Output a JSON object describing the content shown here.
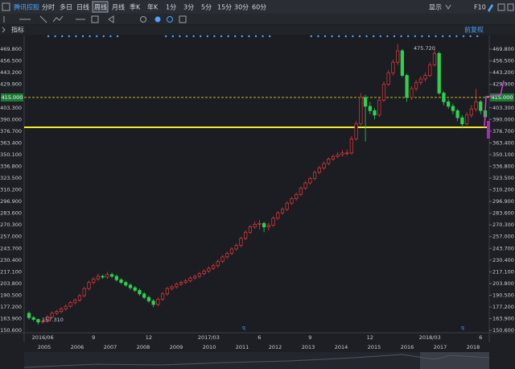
{
  "toolbar": {
    "stock": "腾讯控股",
    "periods": [
      "分时",
      "多日",
      "日线",
      "周线",
      "月线",
      "季K",
      "年K",
      "1分",
      "3分",
      "5分",
      "15分",
      "30分",
      "60分"
    ],
    "selected_index": 3,
    "display": "显示",
    "f10": "F10"
  },
  "indicator_bar": {
    "left": "指标",
    "right": "前复权"
  },
  "chart_data": {
    "type": "candlestick",
    "up_color": "#e8383d",
    "down_color": "#2fd14f",
    "ylim": [
      147.9,
      479.9
    ],
    "yticks": [
      {
        "value": 469.8,
        "label": "469.800"
      },
      {
        "value": 456.5,
        "label": "456.500"
      },
      {
        "value": 443.2,
        "label": "443.200"
      },
      {
        "value": 429.9,
        "label": "429.900"
      },
      {
        "value": 403.3,
        "label": "403.300"
      },
      {
        "value": 390,
        "label": "390.000"
      },
      {
        "value": 376.7,
        "label": "376.700"
      },
      {
        "value": 363.4,
        "label": "363.400"
      },
      {
        "value": 350.1,
        "label": "350.100"
      },
      {
        "value": 336.8,
        "label": "336.800"
      },
      {
        "value": 323.5,
        "label": "323.500"
      },
      {
        "value": 310.2,
        "label": "310.200"
      },
      {
        "value": 296.9,
        "label": "296.900"
      },
      {
        "value": 283.6,
        "label": "283.600"
      },
      {
        "value": 270.3,
        "label": "270.300"
      },
      {
        "value": 257,
        "label": "257.000"
      },
      {
        "value": 243.7,
        "label": "243.700"
      },
      {
        "value": 230.4,
        "label": "230.400"
      },
      {
        "value": 217.1,
        "label": "217.100"
      },
      {
        "value": 203.8,
        "label": "203.800"
      },
      {
        "value": 190.5,
        "label": "190.500"
      },
      {
        "value": 177.2,
        "label": "177.200"
      },
      {
        "value": 163.9,
        "label": "163.900"
      },
      {
        "value": 150.6,
        "label": "150.600"
      }
    ],
    "price_lines": [
      {
        "value": 415,
        "label": "415.000",
        "color": "#d8d020",
        "dashed": true
      },
      {
        "value": 381.1,
        "color": "#f2ea2a",
        "dashed": false
      }
    ],
    "annotations": [
      {
        "label": "475.720"
      },
      {
        "label": "157.310"
      }
    ],
    "categories": [
      null,
      null,
      null,
      "2016/06",
      null,
      null,
      null,
      null,
      null,
      null,
      null,
      null,
      null,
      null,
      "9",
      null,
      null,
      null,
      null,
      null,
      null,
      null,
      null,
      null,
      null,
      null,
      "12",
      null,
      null,
      null,
      null,
      null,
      null,
      null,
      null,
      null,
      null,
      null,
      null,
      "2017/03",
      null,
      null,
      null,
      null,
      null,
      null,
      null,
      null,
      null,
      null,
      "6",
      null,
      null,
      null,
      null,
      null,
      null,
      null,
      null,
      null,
      null,
      "9",
      null,
      null,
      null,
      null,
      null,
      null,
      null,
      null,
      null,
      null,
      null,
      null,
      "12",
      null,
      null,
      null,
      null,
      null,
      null,
      null,
      null,
      null,
      null,
      null,
      null,
      "2018/03",
      null,
      null,
      null,
      null,
      null,
      null,
      null,
      null,
      null,
      null,
      "6",
      null
    ],
    "ohlc": [
      [
        170,
        172,
        163,
        165
      ],
      [
        165,
        167,
        161,
        163
      ],
      [
        163,
        164,
        157.31,
        160
      ],
      [
        160,
        163,
        158,
        161
      ],
      [
        161,
        168,
        159,
        166
      ],
      [
        166,
        172,
        164,
        170
      ],
      [
        170,
        174,
        168,
        172
      ],
      [
        172,
        177,
        170,
        175
      ],
      [
        175,
        180,
        173,
        178
      ],
      [
        178,
        184,
        176,
        182
      ],
      [
        182,
        187,
        180,
        185
      ],
      [
        185,
        192,
        183,
        190
      ],
      [
        190,
        200,
        188,
        198
      ],
      [
        198,
        207,
        196,
        205
      ],
      [
        205,
        211,
        203,
        209
      ],
      [
        209,
        215,
        207,
        212
      ],
      [
        212,
        214,
        209,
        211
      ],
      [
        211,
        217,
        209,
        214
      ],
      [
        214,
        216,
        210,
        212
      ],
      [
        212,
        214,
        206,
        208
      ],
      [
        208,
        210,
        203,
        205
      ],
      [
        205,
        207,
        200,
        202
      ],
      [
        202,
        204,
        197,
        199
      ],
      [
        199,
        201,
        194,
        196
      ],
      [
        196,
        198,
        190,
        192
      ],
      [
        192,
        194,
        186,
        188
      ],
      [
        188,
        190,
        182,
        184
      ],
      [
        184,
        186,
        177,
        180
      ],
      [
        180,
        188,
        178,
        186
      ],
      [
        186,
        194,
        184,
        192
      ],
      [
        192,
        200,
        190,
        198
      ],
      [
        198,
        202,
        196,
        200
      ],
      [
        200,
        205,
        198,
        203
      ],
      [
        203,
        207,
        201,
        205
      ],
      [
        205,
        209,
        203,
        207
      ],
      [
        207,
        212,
        205,
        210
      ],
      [
        210,
        214,
        208,
        212
      ],
      [
        212,
        217,
        210,
        215
      ],
      [
        215,
        220,
        213,
        218
      ],
      [
        218,
        223,
        216,
        221
      ],
      [
        221,
        226,
        219,
        224
      ],
      [
        224,
        231,
        222,
        229
      ],
      [
        229,
        236,
        227,
        234
      ],
      [
        234,
        240,
        232,
        238
      ],
      [
        238,
        245,
        236,
        243
      ],
      [
        243,
        249,
        241,
        247
      ],
      [
        247,
        257,
        245,
        255
      ],
      [
        255,
        264,
        253,
        262
      ],
      [
        262,
        270,
        260,
        268
      ],
      [
        268,
        274,
        266,
        271
      ],
      [
        271,
        276,
        265,
        272
      ],
      [
        272,
        274,
        262,
        268
      ],
      [
        268,
        273,
        264,
        270
      ],
      [
        270,
        280,
        268,
        278
      ],
      [
        278,
        286,
        276,
        284
      ],
      [
        284,
        290,
        282,
        288
      ],
      [
        288,
        297,
        286,
        295
      ],
      [
        295,
        302,
        293,
        300
      ],
      [
        300,
        307,
        298,
        305
      ],
      [
        305,
        314,
        303,
        312
      ],
      [
        312,
        320,
        310,
        318
      ],
      [
        318,
        325,
        316,
        323
      ],
      [
        323,
        332,
        321,
        330
      ],
      [
        330,
        337,
        328,
        335
      ],
      [
        335,
        342,
        333,
        340
      ],
      [
        340,
        347,
        338,
        345
      ],
      [
        345,
        350,
        343,
        348
      ],
      [
        348,
        353,
        346,
        350
      ],
      [
        350,
        355,
        348,
        352
      ],
      [
        352,
        356,
        349,
        352
      ],
      [
        352,
        371,
        350,
        368
      ],
      [
        368,
        388,
        366,
        385
      ],
      [
        385,
        420,
        383,
        415
      ],
      [
        415,
        418,
        365,
        405
      ],
      [
        405,
        410,
        396,
        400
      ],
      [
        400,
        403,
        390,
        395
      ],
      [
        395,
        415,
        393,
        412
      ],
      [
        412,
        433,
        410,
        430
      ],
      [
        430,
        446,
        428,
        443
      ],
      [
        443,
        458,
        440,
        455
      ],
      [
        455,
        475.72,
        452,
        468
      ],
      [
        468,
        470,
        438,
        440
      ],
      [
        440,
        442,
        410,
        415
      ],
      [
        415,
        428,
        412,
        425
      ],
      [
        425,
        435,
        422,
        432
      ],
      [
        432,
        439,
        429,
        436
      ],
      [
        436,
        443,
        433,
        440
      ],
      [
        440,
        455,
        438,
        452
      ],
      [
        452,
        470,
        450,
        465
      ],
      [
        465,
        467,
        418,
        420
      ],
      [
        420,
        422,
        406,
        410
      ],
      [
        410,
        413,
        402,
        405
      ],
      [
        405,
        408,
        396,
        400
      ],
      [
        400,
        402,
        388,
        392
      ],
      [
        392,
        395,
        380,
        385
      ],
      [
        385,
        398,
        383,
        395
      ],
      [
        395,
        406,
        392,
        402
      ],
      [
        402,
        425,
        399,
        410
      ],
      [
        410,
        412,
        396,
        400
      ],
      [
        400,
        403,
        389,
        393
      ]
    ]
  },
  "navigator": {
    "years": [
      "2005",
      "2006",
      "2007",
      "2008",
      "2009",
      "2010",
      "2011",
      "2012",
      "2013",
      "2014",
      "2015",
      "2016",
      "2017",
      "2018"
    ]
  }
}
